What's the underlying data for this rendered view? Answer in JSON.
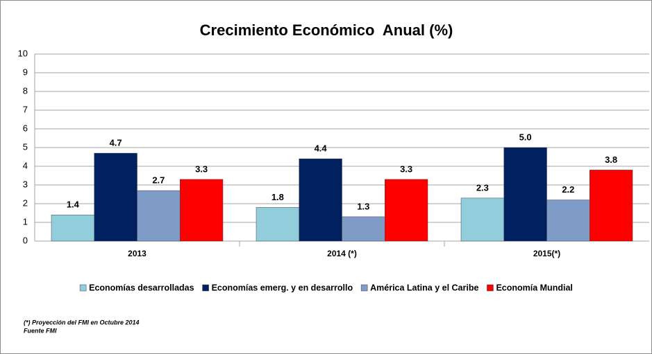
{
  "chart_data": {
    "type": "bar",
    "title": "Crecimiento Económico  Anual (%)",
    "categories": [
      "2013",
      "2014 (*)",
      "2015(*)"
    ],
    "series": [
      {
        "name": "Economías desarrolladas",
        "color": "#92cddc",
        "values": [
          1.4,
          1.8,
          2.3
        ],
        "value_labels": [
          "1.4",
          "1.8",
          "2.3"
        ]
      },
      {
        "name": "Economías emerg. y en desarrollo",
        "color": "#002060",
        "values": [
          4.7,
          4.4,
          5.0
        ],
        "value_labels": [
          "4.7",
          "4.4",
          "5.0"
        ]
      },
      {
        "name": "América Latina y el Caribe",
        "color": "#7f9cc9",
        "values": [
          2.7,
          1.3,
          2.2
        ],
        "value_labels": [
          "2.7",
          "1.3",
          "2.2"
        ]
      },
      {
        "name": "Economía Mundial",
        "color": "#ff0000",
        "values": [
          3.3,
          3.3,
          3.8
        ],
        "value_labels": [
          "3.3",
          "3.3",
          "3.8"
        ]
      }
    ],
    "ylim": [
      0,
      10
    ],
    "yticks": [
      0,
      1,
      2,
      3,
      4,
      5,
      6,
      7,
      8,
      9,
      10
    ],
    "grid": true,
    "legend": "bottom",
    "notes": [
      "(*) Proyección del FMI en Octubre 2014",
      "Fuente FMI"
    ]
  }
}
